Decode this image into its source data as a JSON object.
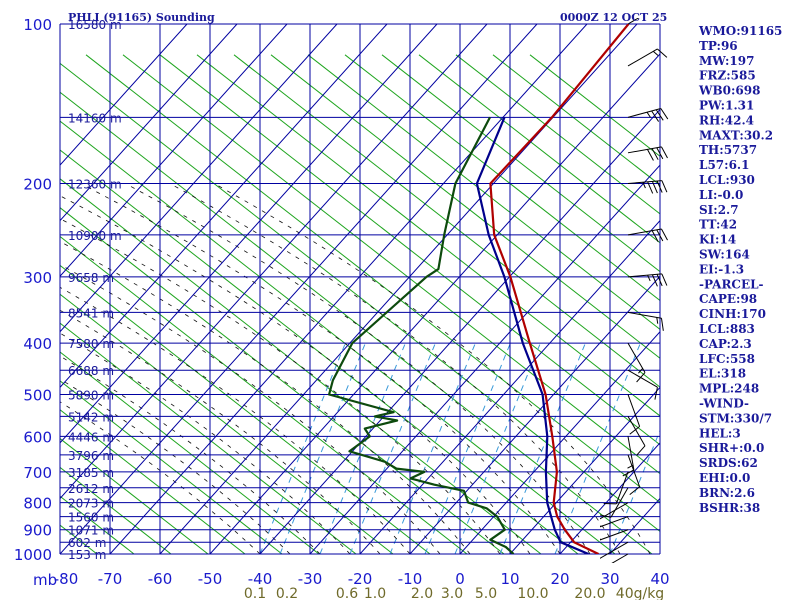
{
  "header": {
    "title": "PHLI (91165) Sounding",
    "time": "0000Z 12 OCT 25"
  },
  "chart_data": {
    "type": "line",
    "subtype": "skew-t log-p",
    "pressure_levels": [
      100,
      200,
      300,
      400,
      500,
      600,
      700,
      800,
      900,
      1000
    ],
    "pressure_labels": [
      "100",
      "200",
      "300",
      "400",
      "500",
      "600",
      "700",
      "800",
      "900",
      "1000"
    ],
    "pressure_unit": "mb",
    "temperature_ticks": [
      -80,
      -70,
      -60,
      -50,
      -40,
      -30,
      -20,
      -10,
      0,
      10,
      20,
      30,
      40
    ],
    "temperature_labels": [
      "-80",
      "-70",
      "-60",
      "-50",
      "-40",
      "-30",
      "-20",
      "-10",
      "0",
      "10",
      "20",
      "30",
      "40"
    ],
    "ylim": [
      1000,
      100
    ],
    "mixing_ratio_labels": [
      "0.1",
      "0.2",
      "0.6",
      "1.0",
      "2.0",
      "3.0",
      "5.0",
      "10.0",
      "20.0",
      "40g/kg"
    ],
    "height_labels": [
      {
        "p": 100,
        "text": "16580 m"
      },
      {
        "p": 150,
        "text": "14160 m"
      },
      {
        "p": 200,
        "text": "12360 m"
      },
      {
        "p": 250,
        "text": "10900 m"
      },
      {
        "p": 300,
        "text": "9658 m"
      },
      {
        "p": 350,
        "text": "8541 m"
      },
      {
        "p": 400,
        "text": "7580 m"
      },
      {
        "p": 450,
        "text": "6688 m"
      },
      {
        "p": 500,
        "text": "5890 m"
      },
      {
        "p": 550,
        "text": "5142 m"
      },
      {
        "p": 600,
        "text": "4446 m"
      },
      {
        "p": 650,
        "text": "3796 m"
      },
      {
        "p": 700,
        "text": "3185 m"
      },
      {
        "p": 750,
        "text": "2612 m"
      },
      {
        "p": 800,
        "text": "2073 m"
      },
      {
        "p": 850,
        "text": "1560 m"
      },
      {
        "p": 900,
        "text": "1071 m"
      },
      {
        "p": 950,
        "text": "602 m"
      },
      {
        "p": 1000,
        "text": "153 m"
      }
    ],
    "series": [
      {
        "color": "#b00000",
        "points": [
          [
            100,
            -61.7
          ],
          [
            150,
            -60.2
          ],
          [
            200,
            -60.6
          ],
          [
            250,
            -50.6
          ],
          [
            300,
            -39.8
          ],
          [
            400,
            -24.0
          ],
          [
            500,
            -11.6
          ],
          [
            600,
            -2.7
          ],
          [
            700,
            4.6
          ],
          [
            800,
            9.5
          ],
          [
            850,
            12.7
          ],
          [
            900,
            16.6
          ],
          [
            950,
            20.7
          ],
          [
            1000,
            27.7
          ]
        ]
      },
      {
        "color": "#00008b",
        "points": [
          [
            150,
            -69.7
          ],
          [
            200,
            -63.3
          ],
          [
            250,
            -51.7
          ],
          [
            300,
            -41.0
          ],
          [
            400,
            -25.4
          ],
          [
            500,
            -12.2
          ],
          [
            600,
            -3.7
          ],
          [
            700,
            2.4
          ],
          [
            800,
            8.2
          ],
          [
            900,
            14.6
          ],
          [
            950,
            18.0
          ],
          [
            1000,
            25.7
          ]
        ]
      },
      {
        "color": "#0d4a0d",
        "points": [
          [
            150,
            -72.6
          ],
          [
            200,
            -67.6
          ],
          [
            250,
            -60.6
          ],
          [
            290,
            -55.6
          ],
          [
            300,
            -56.6
          ],
          [
            400,
            -59.5
          ],
          [
            470,
            -56.7
          ],
          [
            500,
            -54.9
          ],
          [
            540,
            -38.8
          ],
          [
            550,
            -41.8
          ],
          [
            560,
            -36.6
          ],
          [
            580,
            -41.6
          ],
          [
            600,
            -39.2
          ],
          [
            640,
            -40.6
          ],
          [
            670,
            -31.6
          ],
          [
            690,
            -28.1
          ],
          [
            700,
            -21.9
          ],
          [
            720,
            -23.5
          ],
          [
            740,
            -17.6
          ],
          [
            760,
            -10.6
          ],
          [
            800,
            -7.6
          ],
          [
            820,
            -2.9
          ],
          [
            850,
            0.7
          ],
          [
            900,
            4.6
          ],
          [
            940,
            3.5
          ],
          [
            970,
            7.9
          ],
          [
            1000,
            10.7
          ]
        ]
      }
    ],
    "wind_barbs": [
      {
        "p": 100,
        "dir": 60,
        "spd": 10
      },
      {
        "p": 120,
        "dir": 60,
        "spd": 15
      },
      {
        "p": 150,
        "dir": 75,
        "spd": 35
      },
      {
        "p": 175,
        "dir": 80,
        "spd": 40
      },
      {
        "p": 200,
        "dir": 85,
        "spd": 45
      },
      {
        "p": 250,
        "dir": 80,
        "spd": 30
      },
      {
        "p": 300,
        "dir": 85,
        "spd": 35
      },
      {
        "p": 350,
        "dir": 100,
        "spd": 15
      },
      {
        "p": 400,
        "dir": 150,
        "spd": 15
      },
      {
        "p": 450,
        "dir": 120,
        "spd": 10
      },
      {
        "p": 500,
        "dir": 160,
        "spd": 10
      },
      {
        "p": 550,
        "dir": 150,
        "spd": 10
      },
      {
        "p": 600,
        "dir": 170,
        "spd": 15
      },
      {
        "p": 650,
        "dir": 160,
        "spd": 10
      },
      {
        "p": 700,
        "dir": 200,
        "spd": 10
      },
      {
        "p": 750,
        "dir": 210,
        "spd": 10
      },
      {
        "p": 800,
        "dir": 240,
        "spd": 10
      },
      {
        "p": 850,
        "dir": 250,
        "spd": 15
      },
      {
        "p": 900,
        "dir": 250,
        "spd": 15
      },
      {
        "p": 950,
        "dir": 240,
        "spd": 10
      },
      {
        "p": 1000,
        "dir": 240,
        "spd": 10
      }
    ]
  },
  "indices": [
    "WMO:91165",
    "TP:96",
    "MW:197",
    "FRZ:585",
    "WB0:698",
    "PW:1.31",
    "RH:42.4",
    "MAXT:30.2",
    "TH:5737",
    "L57:6.1",
    "LCL:930",
    "LI:-0.0",
    "SI:2.7",
    "TT:42",
    "KI:14",
    "SW:164",
    "EI:-1.3",
    "-PARCEL-",
    "CAPE:98",
    "CINH:170",
    "LCL:883",
    "CAP:2.3",
    "LFC:558",
    "EL:318",
    "MPL:248",
    "-WIND-",
    "STM:330/7",
    "HEL:3",
    "SHR+:0.0",
    "SRDS:62",
    "EHI:0.0",
    "BRN:2.6",
    "BSHR:38"
  ],
  "colors": {
    "grid": "#0000a0",
    "dry_adiabat": "#1fa51f",
    "moist_adiabat": "#111111",
    "mixing_ratio": "#3a9ad9",
    "temperature": "#b00000",
    "parcel": "#00008b",
    "dewpoint": "#0d4a0d",
    "label": "#1a1a9a",
    "axis": "#1a1acc",
    "mixing_label": "#6f6a2a"
  }
}
